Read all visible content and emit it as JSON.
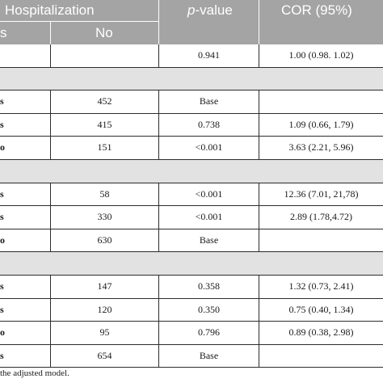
{
  "header": {
    "hospitalization": "Hospitalization",
    "p_prefix": "p",
    "p_suffix": "-value",
    "cor": "COR (95%)",
    "yes_partial": "s",
    "no": "No"
  },
  "rows": [
    {
      "type": "data",
      "c0": "",
      "c1": "",
      "c2": "0.941",
      "c3": "1.00 (0.98. 1.02)"
    },
    {
      "type": "section"
    },
    {
      "type": "data",
      "c0": "s",
      "c1": "452",
      "c2": "Base",
      "c3": ""
    },
    {
      "type": "data",
      "c0": "s",
      "c1": "415",
      "c2": "0.738",
      "c3": "1.09 (0.66, 1.79)"
    },
    {
      "type": "data",
      "c0": "o",
      "c1": "151",
      "c2": "<0.001",
      "c3": "3.63 (2.21, 5.96)"
    },
    {
      "type": "section"
    },
    {
      "type": "data",
      "c0": "s",
      "c1": "58",
      "c2": "<0.001",
      "c3": "12.36 (7.01, 21,78)"
    },
    {
      "type": "data",
      "c0": "s",
      "c1": "330",
      "c2": "<0.001",
      "c3": "2.89 (1.78,4.72)"
    },
    {
      "type": "data",
      "c0": "o",
      "c1": "630",
      "c2": "Base",
      "c3": ""
    },
    {
      "type": "section"
    },
    {
      "type": "data",
      "c0": "s",
      "c1": "147",
      "c2": "0.358",
      "c3": "1.32 (0.73, 2.41)"
    },
    {
      "type": "data",
      "c0": "s",
      "c1": "120",
      "c2": "0.350",
      "c3": "0.75 (0.40, 1.34)"
    },
    {
      "type": "data",
      "c0": "o",
      "c1": "95",
      "c2": "0.796",
      "c3": "0.89 (0.38, 2.98)"
    },
    {
      "type": "data",
      "c0": "s",
      "c1": "654",
      "c2": "Base",
      "c3": ""
    }
  ],
  "footnote": "the adjusted model."
}
